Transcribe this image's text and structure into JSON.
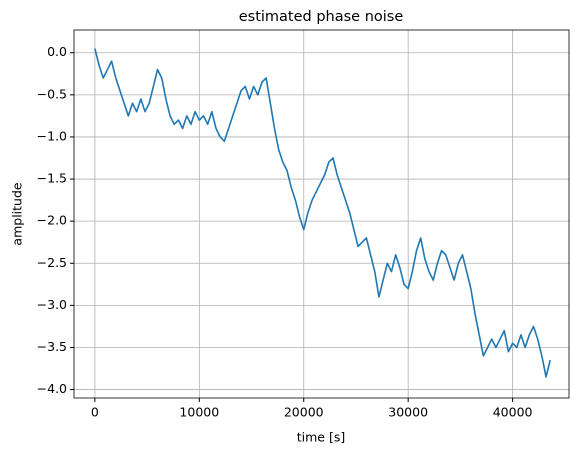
{
  "chart_data": {
    "type": "line",
    "title": "estimated phase noise",
    "xlabel": "time [s]",
    "ylabel": "amplitude",
    "color": "#1f77b4",
    "grid": true,
    "xlim": [
      -2000,
      45400
    ],
    "ylim": [
      -4.1,
      0.27
    ],
    "xticks": [
      0,
      10000,
      20000,
      30000,
      40000
    ],
    "yticks": [
      {
        "value": 0,
        "label": "0.0"
      },
      {
        "value": -0.5,
        "label": "−0.5"
      },
      {
        "value": -1,
        "label": "−1.0"
      },
      {
        "value": -1.5,
        "label": "−1.5"
      },
      {
        "value": -2,
        "label": "−2.0"
      },
      {
        "value": -2.5,
        "label": "−2.5"
      },
      {
        "value": -3,
        "label": "−3.0"
      },
      {
        "value": -3.5,
        "label": "−3.5"
      },
      {
        "value": -4,
        "label": "−4.0"
      }
    ],
    "x": [
      0,
      400,
      800,
      1200,
      1600,
      2000,
      2400,
      2800,
      3200,
      3600,
      4000,
      4400,
      4800,
      5200,
      5600,
      6000,
      6400,
      6800,
      7200,
      7600,
      8000,
      8400,
      8800,
      9200,
      9600,
      10000,
      10400,
      10800,
      11200,
      11600,
      12000,
      12400,
      12800,
      13200,
      13600,
      14000,
      14400,
      14800,
      15200,
      15600,
      16000,
      16400,
      16800,
      17200,
      17600,
      18000,
      18400,
      18800,
      19200,
      19600,
      20000,
      20400,
      20800,
      21200,
      21600,
      22000,
      22400,
      22800,
      23200,
      23600,
      24000,
      24400,
      24800,
      25200,
      25600,
      26000,
      26400,
      26800,
      27200,
      27600,
      28000,
      28400,
      28800,
      29200,
      29600,
      30000,
      30400,
      30800,
      31200,
      31600,
      32000,
      32400,
      32800,
      33200,
      33600,
      34000,
      34400,
      34800,
      35200,
      35600,
      36000,
      36400,
      36800,
      37200,
      37600,
      38000,
      38400,
      38800,
      39200,
      39600,
      40000,
      40400,
      40800,
      41200,
      41600,
      42000,
      42400,
      42800,
      43200,
      43600
    ],
    "values": [
      0.05,
      -0.15,
      -0.3,
      -0.2,
      -0.1,
      -0.3,
      -0.45,
      -0.6,
      -0.75,
      -0.6,
      -0.7,
      -0.55,
      -0.7,
      -0.6,
      -0.4,
      -0.2,
      -0.3,
      -0.55,
      -0.75,
      -0.85,
      -0.8,
      -0.9,
      -0.75,
      -0.85,
      -0.7,
      -0.8,
      -0.75,
      -0.85,
      -0.7,
      -0.9,
      -1.0,
      -1.05,
      -0.9,
      -0.75,
      -0.6,
      -0.45,
      -0.4,
      -0.55,
      -0.4,
      -0.5,
      -0.35,
      -0.3,
      -0.6,
      -0.9,
      -1.15,
      -1.3,
      -1.4,
      -1.6,
      -1.75,
      -1.95,
      -2.1,
      -1.9,
      -1.75,
      -1.65,
      -1.55,
      -1.45,
      -1.3,
      -1.25,
      -1.45,
      -1.6,
      -1.75,
      -1.9,
      -2.1,
      -2.3,
      -2.25,
      -2.2,
      -2.4,
      -2.6,
      -2.9,
      -2.7,
      -2.5,
      -2.6,
      -2.4,
      -2.55,
      -2.75,
      -2.8,
      -2.6,
      -2.35,
      -2.2,
      -2.45,
      -2.6,
      -2.7,
      -2.5,
      -2.35,
      -2.4,
      -2.55,
      -2.7,
      -2.5,
      -2.4,
      -2.6,
      -2.8,
      -3.1,
      -3.35,
      -3.6,
      -3.5,
      -3.4,
      -3.5,
      -3.4,
      -3.3,
      -3.55,
      -3.45,
      -3.5,
      -3.35,
      -3.5,
      -3.35,
      -3.25,
      -3.4,
      -3.6,
      -3.85,
      -3.65
    ]
  }
}
